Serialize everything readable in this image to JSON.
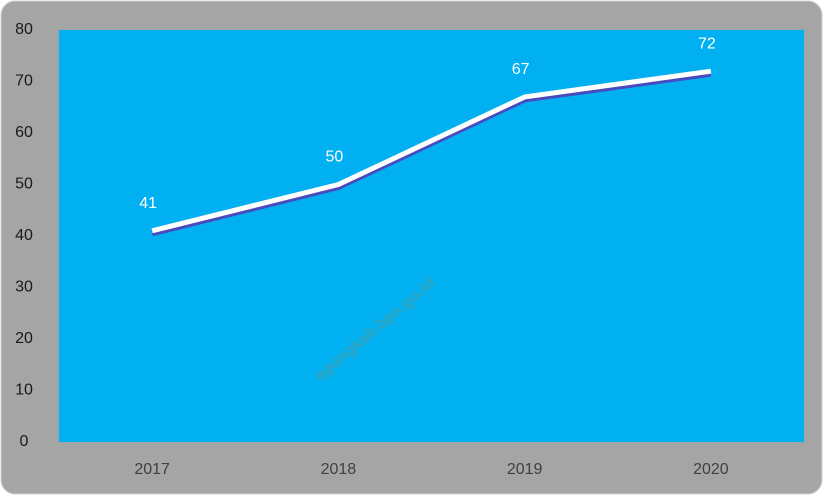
{
  "chart_data": {
    "type": "line",
    "categories": [
      "2017",
      "2018",
      "2019",
      "2020"
    ],
    "values": [
      41,
      50,
      67,
      72
    ],
    "color": "#ffffff",
    "ylim": [
      0,
      80
    ],
    "yticks": [
      0,
      10,
      20,
      30,
      40,
      50,
      60,
      70,
      80
    ],
    "watermark": "agungkab.bps.go.id"
  }
}
